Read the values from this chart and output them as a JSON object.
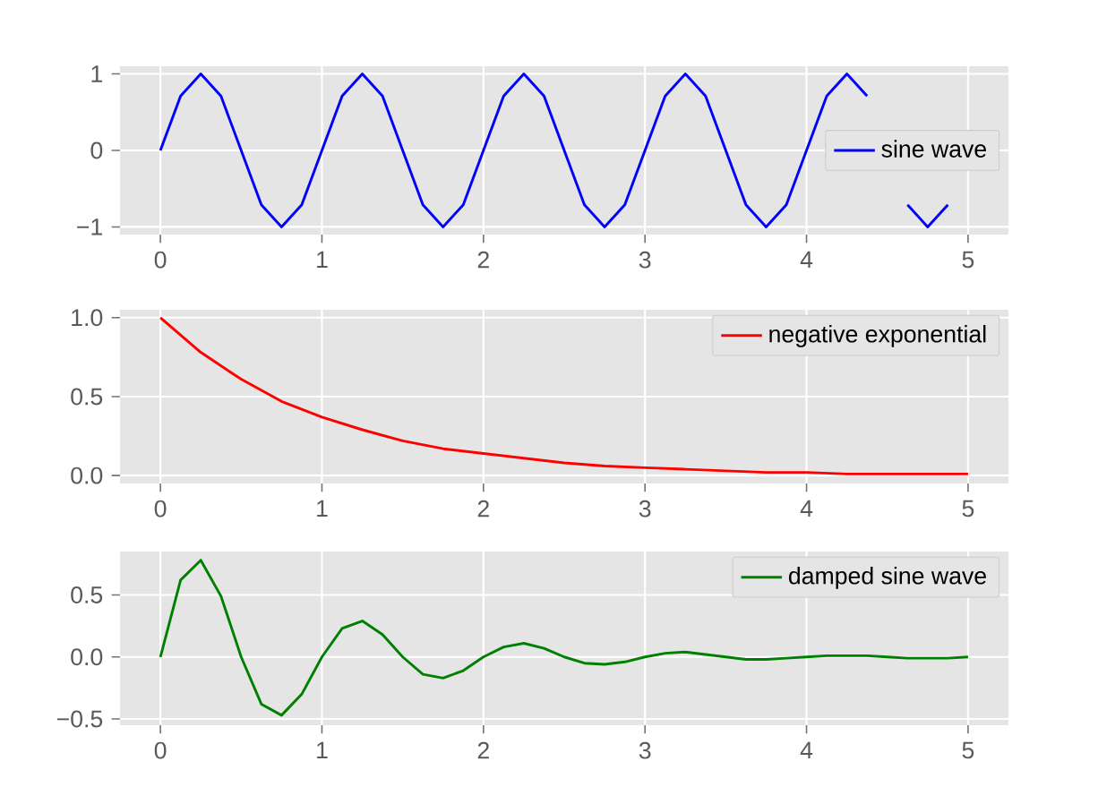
{
  "chart_data": [
    {
      "type": "line",
      "xlim": [
        -0.25,
        5.25
      ],
      "ylim": [
        -1.1,
        1.1
      ],
      "xticks": [
        0,
        1,
        2,
        3,
        4,
        5
      ],
      "yticks": [
        {
          "value": -1,
          "label": "−1"
        },
        0,
        1
      ],
      "grid": true,
      "legend": "center right",
      "line_style": "solid",
      "series": [
        {
          "name": "sine wave",
          "color": "#0000ff",
          "x": [
            0,
            0.125,
            0.25,
            0.375,
            0.5,
            0.625,
            0.75,
            0.875,
            1,
            1.125,
            1.25,
            1.375,
            1.5,
            1.625,
            1.75,
            1.875,
            2,
            2.125,
            2.25,
            2.375,
            2.5,
            2.625,
            2.75,
            2.875,
            3,
            3.125,
            3.25,
            3.375,
            3.5,
            3.625,
            3.75,
            3.875,
            4,
            4.125,
            4.25,
            4.375,
            4.5,
            4.625,
            4.75,
            4.875
          ],
          "values": [
            0,
            0.71,
            1,
            0.71,
            0,
            -0.71,
            -1,
            -0.71,
            0,
            0.71,
            1,
            0.71,
            0,
            -0.71,
            -1,
            -0.71,
            0,
            0.71,
            1,
            0.71,
            0,
            -0.71,
            -1,
            -0.71,
            0,
            0.71,
            1,
            0.71,
            0,
            -0.71,
            -1,
            -0.71,
            0,
            0.71,
            1,
            0.71,
            null,
            -0.71,
            -1,
            -0.71
          ]
        }
      ]
    },
    {
      "type": "line",
      "xlim": [
        -0.25,
        5.25
      ],
      "ylim": [
        -0.05,
        1.05
      ],
      "xticks": [
        0,
        1,
        2,
        3,
        4,
        5
      ],
      "yticks": [
        {
          "value": 0,
          "label": "0.0"
        },
        0.5,
        {
          "value": 1,
          "label": "1.0"
        }
      ],
      "grid": true,
      "legend": "top right",
      "line_style": "solid",
      "series": [
        {
          "name": "negative exponential",
          "color": "#ff0000",
          "x": [
            0,
            0.25,
            0.5,
            0.75,
            1,
            1.25,
            1.5,
            1.75,
            2,
            2.25,
            2.5,
            2.75,
            3,
            3.25,
            3.5,
            3.75,
            4,
            4.25,
            4.5,
            4.75,
            5
          ],
          "values": [
            1,
            0.78,
            0.61,
            0.47,
            0.37,
            0.29,
            0.22,
            0.17,
            0.14,
            0.11,
            0.08,
            0.06,
            0.05,
            0.04,
            0.03,
            0.02,
            0.02,
            0.01,
            0.01,
            0.01,
            0.01
          ]
        }
      ]
    },
    {
      "type": "line",
      "xlim": [
        -0.25,
        5.25
      ],
      "ylim": [
        -0.55,
        0.85
      ],
      "xticks": [
        0,
        1,
        2,
        3,
        4,
        5
      ],
      "yticks": [
        {
          "value": -0.5,
          "label": "−0.5"
        },
        {
          "value": 0,
          "label": "0.0"
        },
        0.5
      ],
      "grid": true,
      "legend": "top right",
      "line_style": "solid",
      "series": [
        {
          "name": "damped sine wave",
          "color": "#008000",
          "x": [
            0,
            0.125,
            0.25,
            0.375,
            0.5,
            0.625,
            0.75,
            0.875,
            1,
            1.125,
            1.25,
            1.375,
            1.5,
            1.625,
            1.75,
            1.875,
            2,
            2.125,
            2.25,
            2.375,
            2.5,
            2.625,
            2.75,
            2.875,
            3,
            3.125,
            3.25,
            3.375,
            3.5,
            3.625,
            3.75,
            3.875,
            4,
            4.125,
            4.25,
            4.375,
            4.5,
            4.625,
            4.75,
            4.875,
            5
          ],
          "values": [
            0,
            0.62,
            0.78,
            0.49,
            0,
            -0.38,
            -0.47,
            -0.3,
            0,
            0.23,
            0.29,
            0.18,
            0,
            -0.14,
            -0.17,
            -0.11,
            0,
            0.08,
            0.11,
            0.07,
            0,
            -0.05,
            -0.06,
            -0.04,
            0,
            0.03,
            0.04,
            0.02,
            0,
            -0.02,
            -0.02,
            -0.01,
            0,
            0.01,
            0.01,
            0.01,
            0,
            -0.01,
            -0.01,
            -0.01,
            0
          ]
        }
      ]
    }
  ]
}
